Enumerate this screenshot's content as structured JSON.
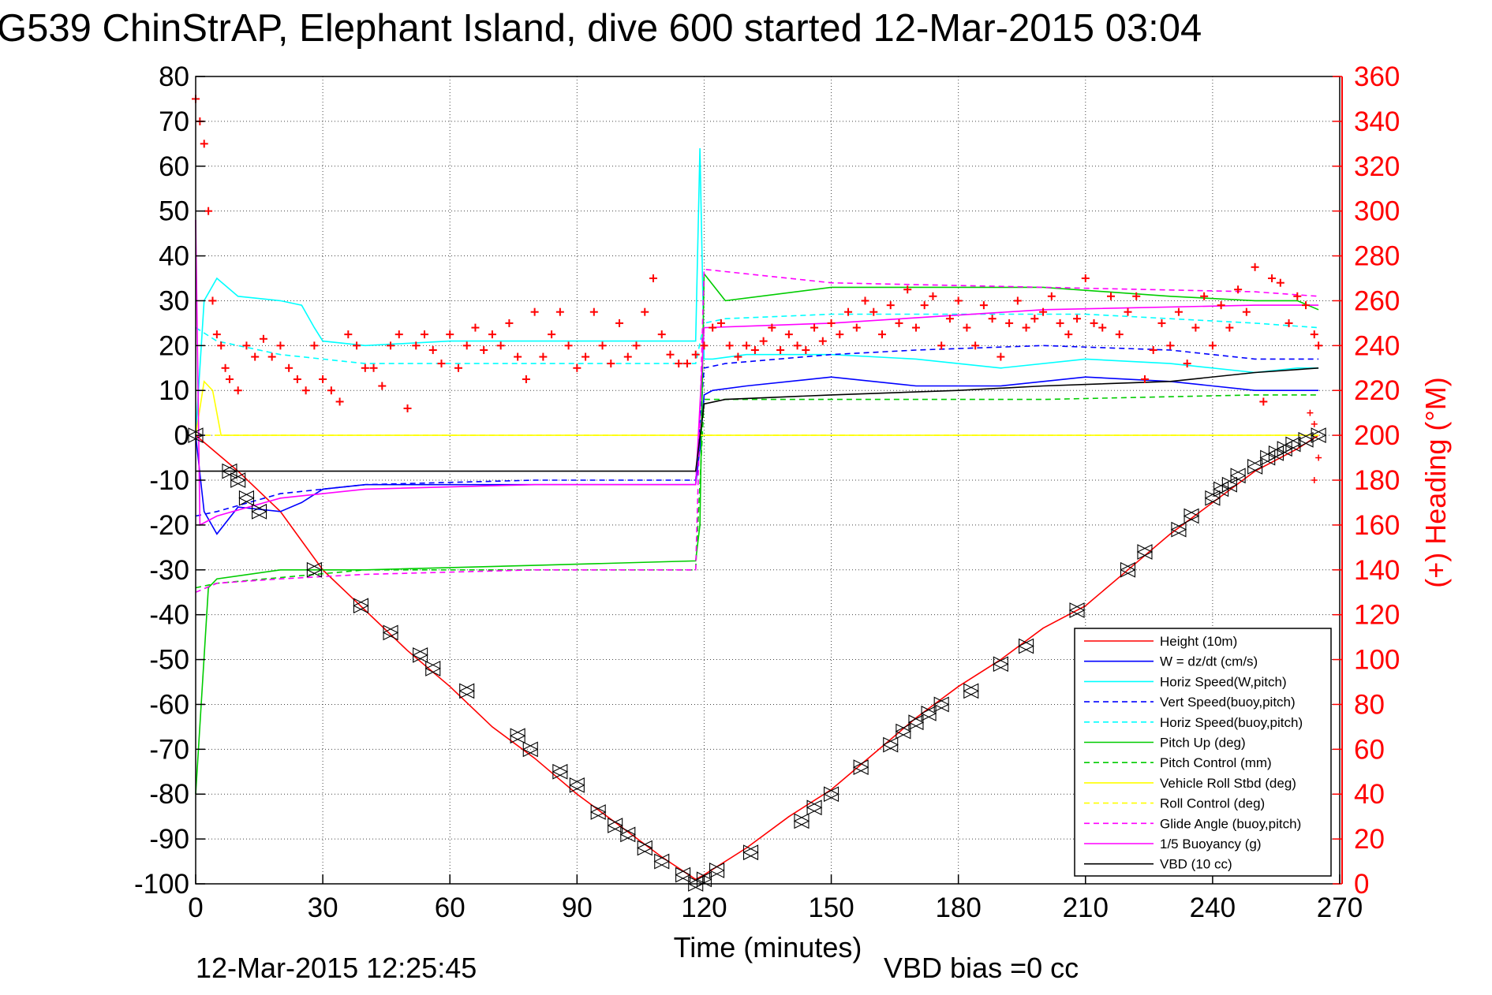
{
  "chart_data": {
    "type": "line",
    "title": "G539 ChinStrAP, Elephant Island, dive 600 started 12-Mar-2015 03:04",
    "xlabel": "Time (minutes)",
    "ylabel_right": "(+) Heading (°M)",
    "footer_left": "12-Mar-2015 12:25:45",
    "footer_center": "VBD bias =0 cc",
    "xlim": [
      0,
      270
    ],
    "ylim": [
      -100,
      80
    ],
    "ylim_right": [
      0,
      360
    ],
    "x_ticks": [
      "0",
      "30",
      "60",
      "90",
      "120",
      "150",
      "180",
      "210",
      "240",
      "270"
    ],
    "y_ticks": [
      "80",
      "70",
      "60",
      "50",
      "40",
      "30",
      "20",
      "10",
      "0",
      "-10",
      "-20",
      "-30",
      "-40",
      "-50",
      "-60",
      "-70",
      "-80",
      "-90",
      "-100"
    ],
    "y_ticks_right": [
      "360",
      "340",
      "320",
      "300",
      "280",
      "260",
      "240",
      "220",
      "200",
      "180",
      "160",
      "140",
      "120",
      "100",
      "80",
      "60",
      "40",
      "20",
      "0"
    ],
    "grid": true,
    "legend_position": "bottom-right",
    "series": [
      {
        "name": "Height (10m)",
        "color": "#ff0000",
        "style": "solid",
        "x": [
          0,
          10,
          20,
          30,
          40,
          50,
          60,
          70,
          80,
          90,
          100,
          110,
          118,
          120,
          130,
          140,
          150,
          160,
          170,
          180,
          190,
          200,
          210,
          220,
          230,
          240,
          250,
          260,
          265
        ],
        "values": [
          0,
          -8,
          -17,
          -30,
          -39,
          -48,
          -56,
          -65,
          -72,
          -80,
          -87,
          -94,
          -99,
          -98,
          -92,
          -85,
          -79,
          -71,
          -63,
          -56,
          -50,
          -43,
          -38,
          -30,
          -22,
          -15,
          -8,
          -3,
          0
        ]
      },
      {
        "name": "W = dz/dt (cm/s)",
        "color": "#0000ff",
        "style": "solid",
        "x": [
          0,
          2,
          5,
          10,
          20,
          25,
          30,
          40,
          60,
          80,
          100,
          118,
          119,
          120,
          122,
          130,
          150,
          170,
          190,
          210,
          230,
          250,
          260,
          265
        ],
        "values": [
          0,
          -17,
          -22,
          -16,
          -17,
          -15,
          -12,
          -11,
          -11,
          -11,
          -11,
          -11,
          -3,
          9,
          10,
          11,
          13,
          11,
          11,
          13,
          12,
          10,
          10,
          10
        ]
      },
      {
        "name": "Horiz Speed(W,pitch)",
        "color": "#00ffff",
        "style": "solid",
        "x": [
          0,
          2,
          5,
          10,
          20,
          25,
          28,
          30,
          40,
          60,
          80,
          100,
          118,
          119,
          120,
          122,
          130,
          150,
          170,
          190,
          210,
          230,
          250,
          260,
          265
        ],
        "values": [
          0,
          30,
          35,
          31,
          30,
          29,
          24,
          21,
          20,
          21,
          21,
          21,
          21,
          64,
          17,
          17,
          18,
          18,
          17,
          15,
          17,
          16,
          14,
          15,
          15
        ]
      },
      {
        "name": "Vert Speed(buoy,pitch)",
        "color": "#0000ff",
        "style": "dashed",
        "x": [
          0,
          5,
          20,
          40,
          80,
          118,
          120,
          125,
          150,
          170,
          200,
          230,
          250,
          265
        ],
        "values": [
          -18,
          -17,
          -13,
          -11,
          -10,
          -10,
          15,
          16,
          18,
          19,
          20,
          19,
          17,
          17
        ]
      },
      {
        "name": "Horiz Speed(buoy,pitch)",
        "color": "#00ffff",
        "style": "dashed",
        "x": [
          0,
          5,
          20,
          40,
          80,
          118,
          120,
          125,
          150,
          180,
          210,
          230,
          250,
          265
        ],
        "values": [
          24,
          21,
          18,
          16,
          16,
          16,
          25,
          26,
          27,
          27,
          27,
          26,
          25,
          24
        ]
      },
      {
        "name": "Pitch Up (deg)",
        "color": "#00cc00",
        "style": "solid",
        "x": [
          0,
          3,
          5,
          20,
          40,
          80,
          118,
          119,
          120,
          125,
          150,
          170,
          200,
          230,
          250,
          260,
          265
        ],
        "values": [
          -80,
          -34,
          -32,
          -30,
          -30,
          -29,
          -28,
          -20,
          36,
          30,
          33,
          33,
          33,
          31,
          30,
          30,
          28
        ]
      },
      {
        "name": "Pitch Control (mm)",
        "color": "#00cc00",
        "style": "dashed",
        "x": [
          0,
          5,
          40,
          118,
          120,
          150,
          200,
          250,
          265
        ],
        "values": [
          -34,
          -33,
          -30,
          -30,
          8,
          8,
          8,
          9,
          9
        ]
      },
      {
        "name": "Vehicle Roll Stbd (deg)",
        "color": "#ffff00",
        "style": "solid",
        "x": [
          0,
          2,
          4,
          6,
          10,
          20,
          40,
          80,
          118,
          120,
          150,
          200,
          250,
          265
        ],
        "values": [
          0,
          12,
          10,
          0,
          0,
          0,
          0,
          0,
          0,
          0,
          0,
          0,
          0,
          0
        ]
      },
      {
        "name": "Roll Control (deg)",
        "color": "#ffff00",
        "style": "dashed",
        "x": [
          0,
          10,
          40,
          80,
          118,
          120,
          150,
          200,
          250,
          265
        ],
        "values": [
          0,
          0,
          0,
          0,
          0,
          0,
          0,
          0,
          0,
          0
        ]
      },
      {
        "name": "Glide Angle (buoy,pitch)",
        "color": "#ff00ff",
        "style": "dashed",
        "x": [
          0,
          5,
          20,
          40,
          80,
          118,
          120,
          150,
          200,
          250,
          265
        ],
        "values": [
          -35,
          -33,
          -32,
          -31,
          -30,
          -30,
          37,
          34,
          33,
          32,
          31
        ]
      },
      {
        "name": "1/5 Buoyancy (g)",
        "color": "#ff00ff",
        "style": "solid",
        "x": [
          0,
          1,
          5,
          20,
          40,
          80,
          118,
          120,
          150,
          200,
          250,
          265
        ],
        "values": [
          48,
          -20,
          -18,
          -14,
          -12,
          -11,
          -11,
          24,
          25,
          28,
          29,
          29
        ]
      },
      {
        "name": "VBD (10 cc)",
        "color": "#000000",
        "style": "solid",
        "x": [
          0,
          1,
          5,
          60,
          118,
          120,
          125,
          150,
          180,
          200,
          230,
          250,
          265
        ],
        "values": [
          -8,
          -8,
          -8,
          -8,
          -8,
          7,
          8,
          9,
          10,
          11,
          12,
          14,
          15
        ]
      }
    ],
    "heading_markers": {
      "name": "(+) Heading (°M)",
      "color": "#ff0000",
      "marker": "+",
      "x": [
        0,
        1,
        2,
        3,
        4,
        5,
        6,
        7,
        8,
        10,
        12,
        14,
        16,
        18,
        20,
        22,
        24,
        26,
        28,
        30,
        32,
        34,
        36,
        38,
        40,
        42,
        44,
        46,
        48,
        50,
        52,
        54,
        56,
        58,
        60,
        62,
        64,
        66,
        68,
        70,
        72,
        74,
        76,
        78,
        80,
        82,
        84,
        86,
        88,
        90,
        92,
        94,
        96,
        98,
        100,
        102,
        104,
        106,
        108,
        110,
        112,
        114,
        116,
        118,
        120,
        122,
        124,
        126,
        128,
        130,
        132,
        134,
        136,
        138,
        140,
        142,
        144,
        146,
        148,
        150,
        152,
        154,
        156,
        158,
        160,
        162,
        164,
        166,
        168,
        170,
        172,
        174,
        176,
        178,
        180,
        182,
        184,
        186,
        188,
        190,
        192,
        194,
        196,
        198,
        200,
        202,
        204,
        206,
        208,
        210,
        212,
        214,
        216,
        218,
        220,
        222,
        224,
        226,
        228,
        230,
        232,
        234,
        236,
        238,
        240,
        242,
        244,
        246,
        248,
        250,
        252,
        254,
        256,
        258,
        260,
        262,
        264,
        265
      ],
      "values": [
        350,
        340,
        330,
        300,
        260,
        245,
        240,
        230,
        225,
        220,
        240,
        235,
        243,
        235,
        240,
        230,
        225,
        220,
        240,
        225,
        220,
        215,
        245,
        240,
        230,
        230,
        222,
        240,
        245,
        212,
        240,
        245,
        238,
        232,
        245,
        230,
        240,
        248,
        238,
        245,
        240,
        250,
        235,
        225,
        255,
        235,
        245,
        255,
        240,
        230,
        235,
        255,
        240,
        232,
        250,
        235,
        240,
        255,
        270,
        245,
        236,
        232,
        232,
        236,
        240,
        248,
        250,
        240,
        235,
        240,
        238,
        242,
        248,
        238,
        245,
        240,
        238,
        248,
        242,
        250,
        245,
        255,
        248,
        260,
        255,
        245,
        258,
        250,
        265,
        248,
        258,
        262,
        240,
        252,
        260,
        248,
        240,
        258,
        252,
        235,
        250,
        260,
        248,
        252,
        255,
        262,
        250,
        245,
        252,
        270,
        250,
        248,
        262,
        245,
        255,
        262,
        225,
        238,
        250,
        240,
        255,
        232,
        248,
        262,
        240,
        258,
        248,
        265,
        255,
        275,
        215,
        270,
        268,
        250,
        262,
        258,
        245,
        240
      ]
    },
    "depth_markers": {
      "marker": "triangle",
      "color": "#000000",
      "x": [
        0,
        8,
        10,
        12,
        15,
        28,
        39,
        46,
        53,
        56,
        64,
        76,
        79,
        86,
        90,
        95,
        99,
        102,
        106,
        110,
        115,
        118,
        120,
        123,
        131,
        143,
        146,
        150,
        157,
        164,
        167,
        170,
        173,
        176,
        183,
        190,
        196,
        208,
        220,
        224,
        232,
        235,
        240,
        242,
        244,
        246,
        250,
        253,
        255,
        257,
        259,
        262,
        265
      ],
      "values": [
        0,
        -8,
        -10,
        -14,
        -17,
        -30,
        -38,
        -44,
        -49,
        -52,
        -57,
        -67,
        -70,
        -75,
        -78,
        -84,
        -87,
        -89,
        -92,
        -95,
        -98,
        -100,
        -99,
        -97,
        -93,
        -86,
        -83,
        -80,
        -74,
        -69,
        -66,
        -64,
        -62,
        -60,
        -57,
        -51,
        -47,
        -39,
        -30,
        -26,
        -21,
        -18,
        -14,
        -12,
        -11,
        -9,
        -7,
        -5,
        -4,
        -3,
        -2,
        -1,
        0
      ]
    },
    "sparse_heading_points": {
      "x": [
        263,
        264,
        265,
        264
      ],
      "values": [
        210,
        205,
        190,
        180
      ]
    }
  }
}
